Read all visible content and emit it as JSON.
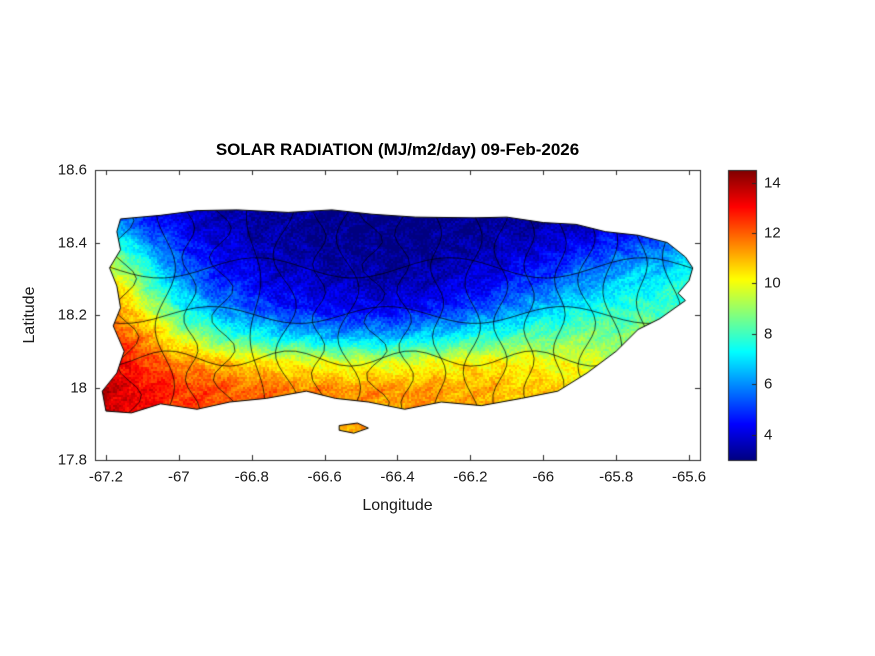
{
  "figure": {
    "background": "#ffffff"
  },
  "chart_data": {
    "type": "heatmap",
    "title": "SOLAR RADIATION (MJ/m2/day) 09-Feb-2026",
    "xlabel": "Longitude",
    "ylabel": "Latitude",
    "xlim": [
      -67.23,
      -65.57
    ],
    "ylim": [
      17.8,
      18.6
    ],
    "x_ticks": [
      -67.2,
      -67.0,
      -66.8,
      -66.6,
      -66.4,
      -66.2,
      -66.0,
      -65.8,
      -65.6
    ],
    "x_tick_labels": [
      "-67.2",
      "-67",
      "-66.8",
      "-66.6",
      "-66.4",
      "-66.2",
      "-66",
      "-65.8",
      "-65.6"
    ],
    "y_ticks": [
      17.8,
      18.0,
      18.2,
      18.4,
      18.6
    ],
    "y_tick_labels": [
      "17.8",
      "18",
      "18.2",
      "18.4",
      "18.6"
    ],
    "colormap": "jet",
    "clim": [
      3,
      14.5
    ],
    "colorbar_ticks": [
      4,
      6,
      8,
      10,
      12,
      14
    ],
    "colorbar_tick_labels": [
      "4",
      "6",
      "8",
      "10",
      "12",
      "14"
    ],
    "grid": {
      "lon_min": -67.25,
      "lon_max": -65.6,
      "lat_max": 18.52,
      "lat_min": 17.92,
      "ncols": 20,
      "nrows": 9,
      "values_north_to_south": [
        [
          4.5,
          4.2,
          4.0,
          3.8,
          3.5,
          3.3,
          3.2,
          3.2,
          3.1,
          3.1,
          3.0,
          3.0,
          3.1,
          3.1,
          3.2,
          3.2,
          3.3,
          3.5,
          4.0,
          4.5
        ],
        [
          6.5,
          6.0,
          5.0,
          4.2,
          3.8,
          3.5,
          3.3,
          3.2,
          3.1,
          3.1,
          3.0,
          3.1,
          3.2,
          3.3,
          3.4,
          3.6,
          3.8,
          4.2,
          4.8,
          5.5
        ],
        [
          9.5,
          8.5,
          6.5,
          5.0,
          4.3,
          3.9,
          3.6,
          3.4,
          3.3,
          3.2,
          3.2,
          3.3,
          3.5,
          3.7,
          4.0,
          4.4,
          5.0,
          5.5,
          6.0,
          6.5
        ],
        [
          11.0,
          10.0,
          8.0,
          6.0,
          5.0,
          4.4,
          4.0,
          3.8,
          3.6,
          3.5,
          3.5,
          3.7,
          4.0,
          4.4,
          5.0,
          5.6,
          6.2,
          6.8,
          7.2,
          7.5
        ],
        [
          12.0,
          11.2,
          9.5,
          7.5,
          6.2,
          5.4,
          4.8,
          4.5,
          4.3,
          4.2,
          4.3,
          4.6,
          5.0,
          5.6,
          6.3,
          7.0,
          7.5,
          7.8,
          8.0,
          8.0
        ],
        [
          12.8,
          12.2,
          11.0,
          9.5,
          8.3,
          7.5,
          7.0,
          6.6,
          6.3,
          6.2,
          6.4,
          6.8,
          7.3,
          7.8,
          8.2,
          8.5,
          8.7,
          8.8,
          8.7,
          8.5
        ],
        [
          13.5,
          13.0,
          12.3,
          11.5,
          11.0,
          10.6,
          10.3,
          10.0,
          9.8,
          9.7,
          9.8,
          10.0,
          10.2,
          10.3,
          10.2,
          10.0,
          9.8,
          9.5,
          9.2,
          9.0
        ],
        [
          14.0,
          13.6,
          13.0,
          12.5,
          12.2,
          12.0,
          11.8,
          11.6,
          11.5,
          11.4,
          11.4,
          11.3,
          11.2,
          11.0,
          10.8,
          10.5,
          10.2,
          9.8,
          9.5,
          9.2
        ],
        [
          13.8,
          13.4,
          12.8,
          12.4,
          12.0,
          11.8,
          11.6,
          11.4,
          11.3,
          11.2,
          11.2,
          11.1,
          11.0,
          10.8,
          10.6,
          10.3,
          10.0,
          9.6,
          9.3,
          9.0
        ]
      ]
    },
    "island_outline": [
      [
        -67.16,
        18.465
      ],
      [
        -67.05,
        18.475
      ],
      [
        -66.95,
        18.488
      ],
      [
        -66.84,
        18.49
      ],
      [
        -66.7,
        18.483
      ],
      [
        -66.58,
        18.49
      ],
      [
        -66.47,
        18.478
      ],
      [
        -66.35,
        18.47
      ],
      [
        -66.19,
        18.468
      ],
      [
        -66.1,
        18.47
      ],
      [
        -66.0,
        18.455
      ],
      [
        -65.91,
        18.45
      ],
      [
        -65.83,
        18.43
      ],
      [
        -65.74,
        18.42
      ],
      [
        -65.66,
        18.4
      ],
      [
        -65.61,
        18.36
      ],
      [
        -65.59,
        18.33
      ],
      [
        -65.6,
        18.295
      ],
      [
        -65.63,
        18.26
      ],
      [
        -65.61,
        18.24
      ],
      [
        -65.68,
        18.19
      ],
      [
        -65.74,
        18.16
      ],
      [
        -65.8,
        18.1
      ],
      [
        -65.88,
        18.04
      ],
      [
        -65.96,
        17.99
      ],
      [
        -66.06,
        17.97
      ],
      [
        -66.17,
        17.95
      ],
      [
        -66.28,
        17.96
      ],
      [
        -66.38,
        17.94
      ],
      [
        -66.48,
        17.96
      ],
      [
        -66.57,
        17.97
      ],
      [
        -66.65,
        17.99
      ],
      [
        -66.76,
        17.97
      ],
      [
        -66.86,
        17.96
      ],
      [
        -66.95,
        17.94
      ],
      [
        -67.05,
        17.955
      ],
      [
        -67.13,
        17.93
      ],
      [
        -67.2,
        17.935
      ],
      [
        -67.21,
        17.99
      ],
      [
        -67.17,
        18.04
      ],
      [
        -67.15,
        18.1
      ],
      [
        -67.18,
        18.17
      ],
      [
        -67.16,
        18.22
      ],
      [
        -67.17,
        18.28
      ],
      [
        -67.19,
        18.33
      ],
      [
        -67.16,
        18.38
      ],
      [
        -67.17,
        18.43
      ]
    ],
    "islets": [
      [
        [
          -66.56,
          17.895
        ],
        [
          -66.51,
          17.902
        ],
        [
          -66.48,
          17.888
        ],
        [
          -66.52,
          17.874
        ],
        [
          -66.56,
          17.882
        ]
      ]
    ],
    "boundaries": {
      "vertical_lons": [
        -67.13,
        -67.04,
        -66.96,
        -66.87,
        -66.78,
        -66.7,
        -66.62,
        -66.53,
        -66.45,
        -66.37,
        -66.28,
        -66.2,
        -66.12,
        -66.04,
        -65.96,
        -65.88,
        -65.8,
        -65.72,
        -65.65
      ],
      "horizontal_lats": [
        18.33,
        18.2,
        18.08
      ]
    }
  }
}
